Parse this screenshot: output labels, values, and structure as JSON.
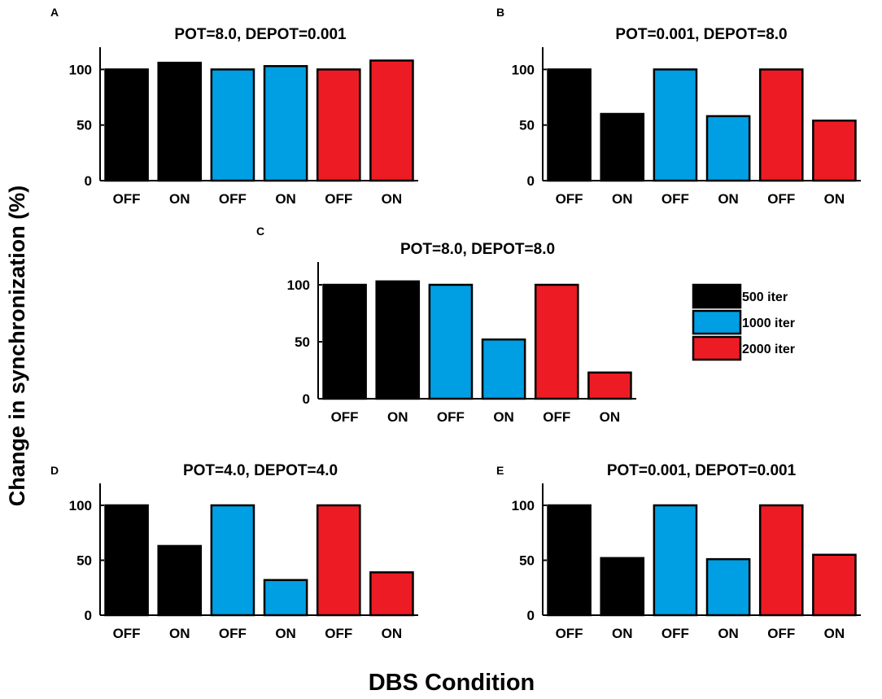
{
  "figure": {
    "ylabel": "Change in synchronization (%)",
    "xlabel": "DBS Condition"
  },
  "colors": {
    "500 iter": "#000000",
    "1000 iter": "#009fe3",
    "2000 iter": "#ed1c24"
  },
  "legend": [
    {
      "label": "500 iter",
      "series": "500 iter"
    },
    {
      "label": "1000 iter",
      "series": "1000 iter"
    },
    {
      "label": "2000 iter",
      "series": "2000 iter"
    }
  ],
  "chart_data": [
    {
      "panel": "A",
      "type": "bar",
      "title": "POT=8.0, DEPOT=0.001",
      "categories": [
        "OFF",
        "ON",
        "OFF",
        "ON",
        "OFF",
        "ON"
      ],
      "series_of_bar": [
        "500 iter",
        "500 iter",
        "1000 iter",
        "1000 iter",
        "2000 iter",
        "2000 iter"
      ],
      "values": [
        100,
        106,
        100,
        103,
        100,
        108
      ],
      "ylim": [
        0,
        120
      ],
      "yticks": [
        0,
        50,
        100
      ],
      "ylabel": "",
      "xlabel": ""
    },
    {
      "panel": "B",
      "type": "bar",
      "title": "POT=0.001, DEPOT=8.0",
      "categories": [
        "OFF",
        "ON",
        "OFF",
        "ON",
        "OFF",
        "ON"
      ],
      "series_of_bar": [
        "500 iter",
        "500 iter",
        "1000 iter",
        "1000 iter",
        "2000 iter",
        "2000 iter"
      ],
      "values": [
        100,
        60,
        100,
        58,
        100,
        54
      ],
      "ylim": [
        0,
        120
      ],
      "yticks": [
        0,
        50,
        100
      ],
      "ylabel": "",
      "xlabel": ""
    },
    {
      "panel": "C",
      "type": "bar",
      "title": "POT=8.0, DEPOT=8.0",
      "categories": [
        "OFF",
        "ON",
        "OFF",
        "ON",
        "OFF",
        "ON"
      ],
      "series_of_bar": [
        "500 iter",
        "500 iter",
        "1000 iter",
        "1000 iter",
        "2000 iter",
        "2000 iter"
      ],
      "values": [
        100,
        103,
        100,
        52,
        100,
        23
      ],
      "ylim": [
        0,
        120
      ],
      "yticks": [
        0,
        50,
        100
      ],
      "ylabel": "",
      "xlabel": ""
    },
    {
      "panel": "D",
      "type": "bar",
      "title": "POT=4.0, DEPOT=4.0",
      "categories": [
        "OFF",
        "ON",
        "OFF",
        "ON",
        "OFF",
        "ON"
      ],
      "series_of_bar": [
        "500 iter",
        "500 iter",
        "1000 iter",
        "1000 iter",
        "2000 iter",
        "2000 iter"
      ],
      "values": [
        100,
        63,
        100,
        32,
        100,
        39
      ],
      "ylim": [
        0,
        120
      ],
      "yticks": [
        0,
        50,
        100
      ],
      "ylabel": "",
      "xlabel": ""
    },
    {
      "panel": "E",
      "type": "bar",
      "title": "POT=0.001, DEPOT=0.001",
      "categories": [
        "OFF",
        "ON",
        "OFF",
        "ON",
        "OFF",
        "ON"
      ],
      "series_of_bar": [
        "500 iter",
        "500 iter",
        "1000 iter",
        "1000 iter",
        "2000 iter",
        "2000 iter"
      ],
      "values": [
        100,
        52,
        100,
        51,
        100,
        55
      ],
      "ylim": [
        0,
        120
      ],
      "yticks": [
        0,
        50,
        100
      ],
      "ylabel": "",
      "xlabel": ""
    }
  ]
}
